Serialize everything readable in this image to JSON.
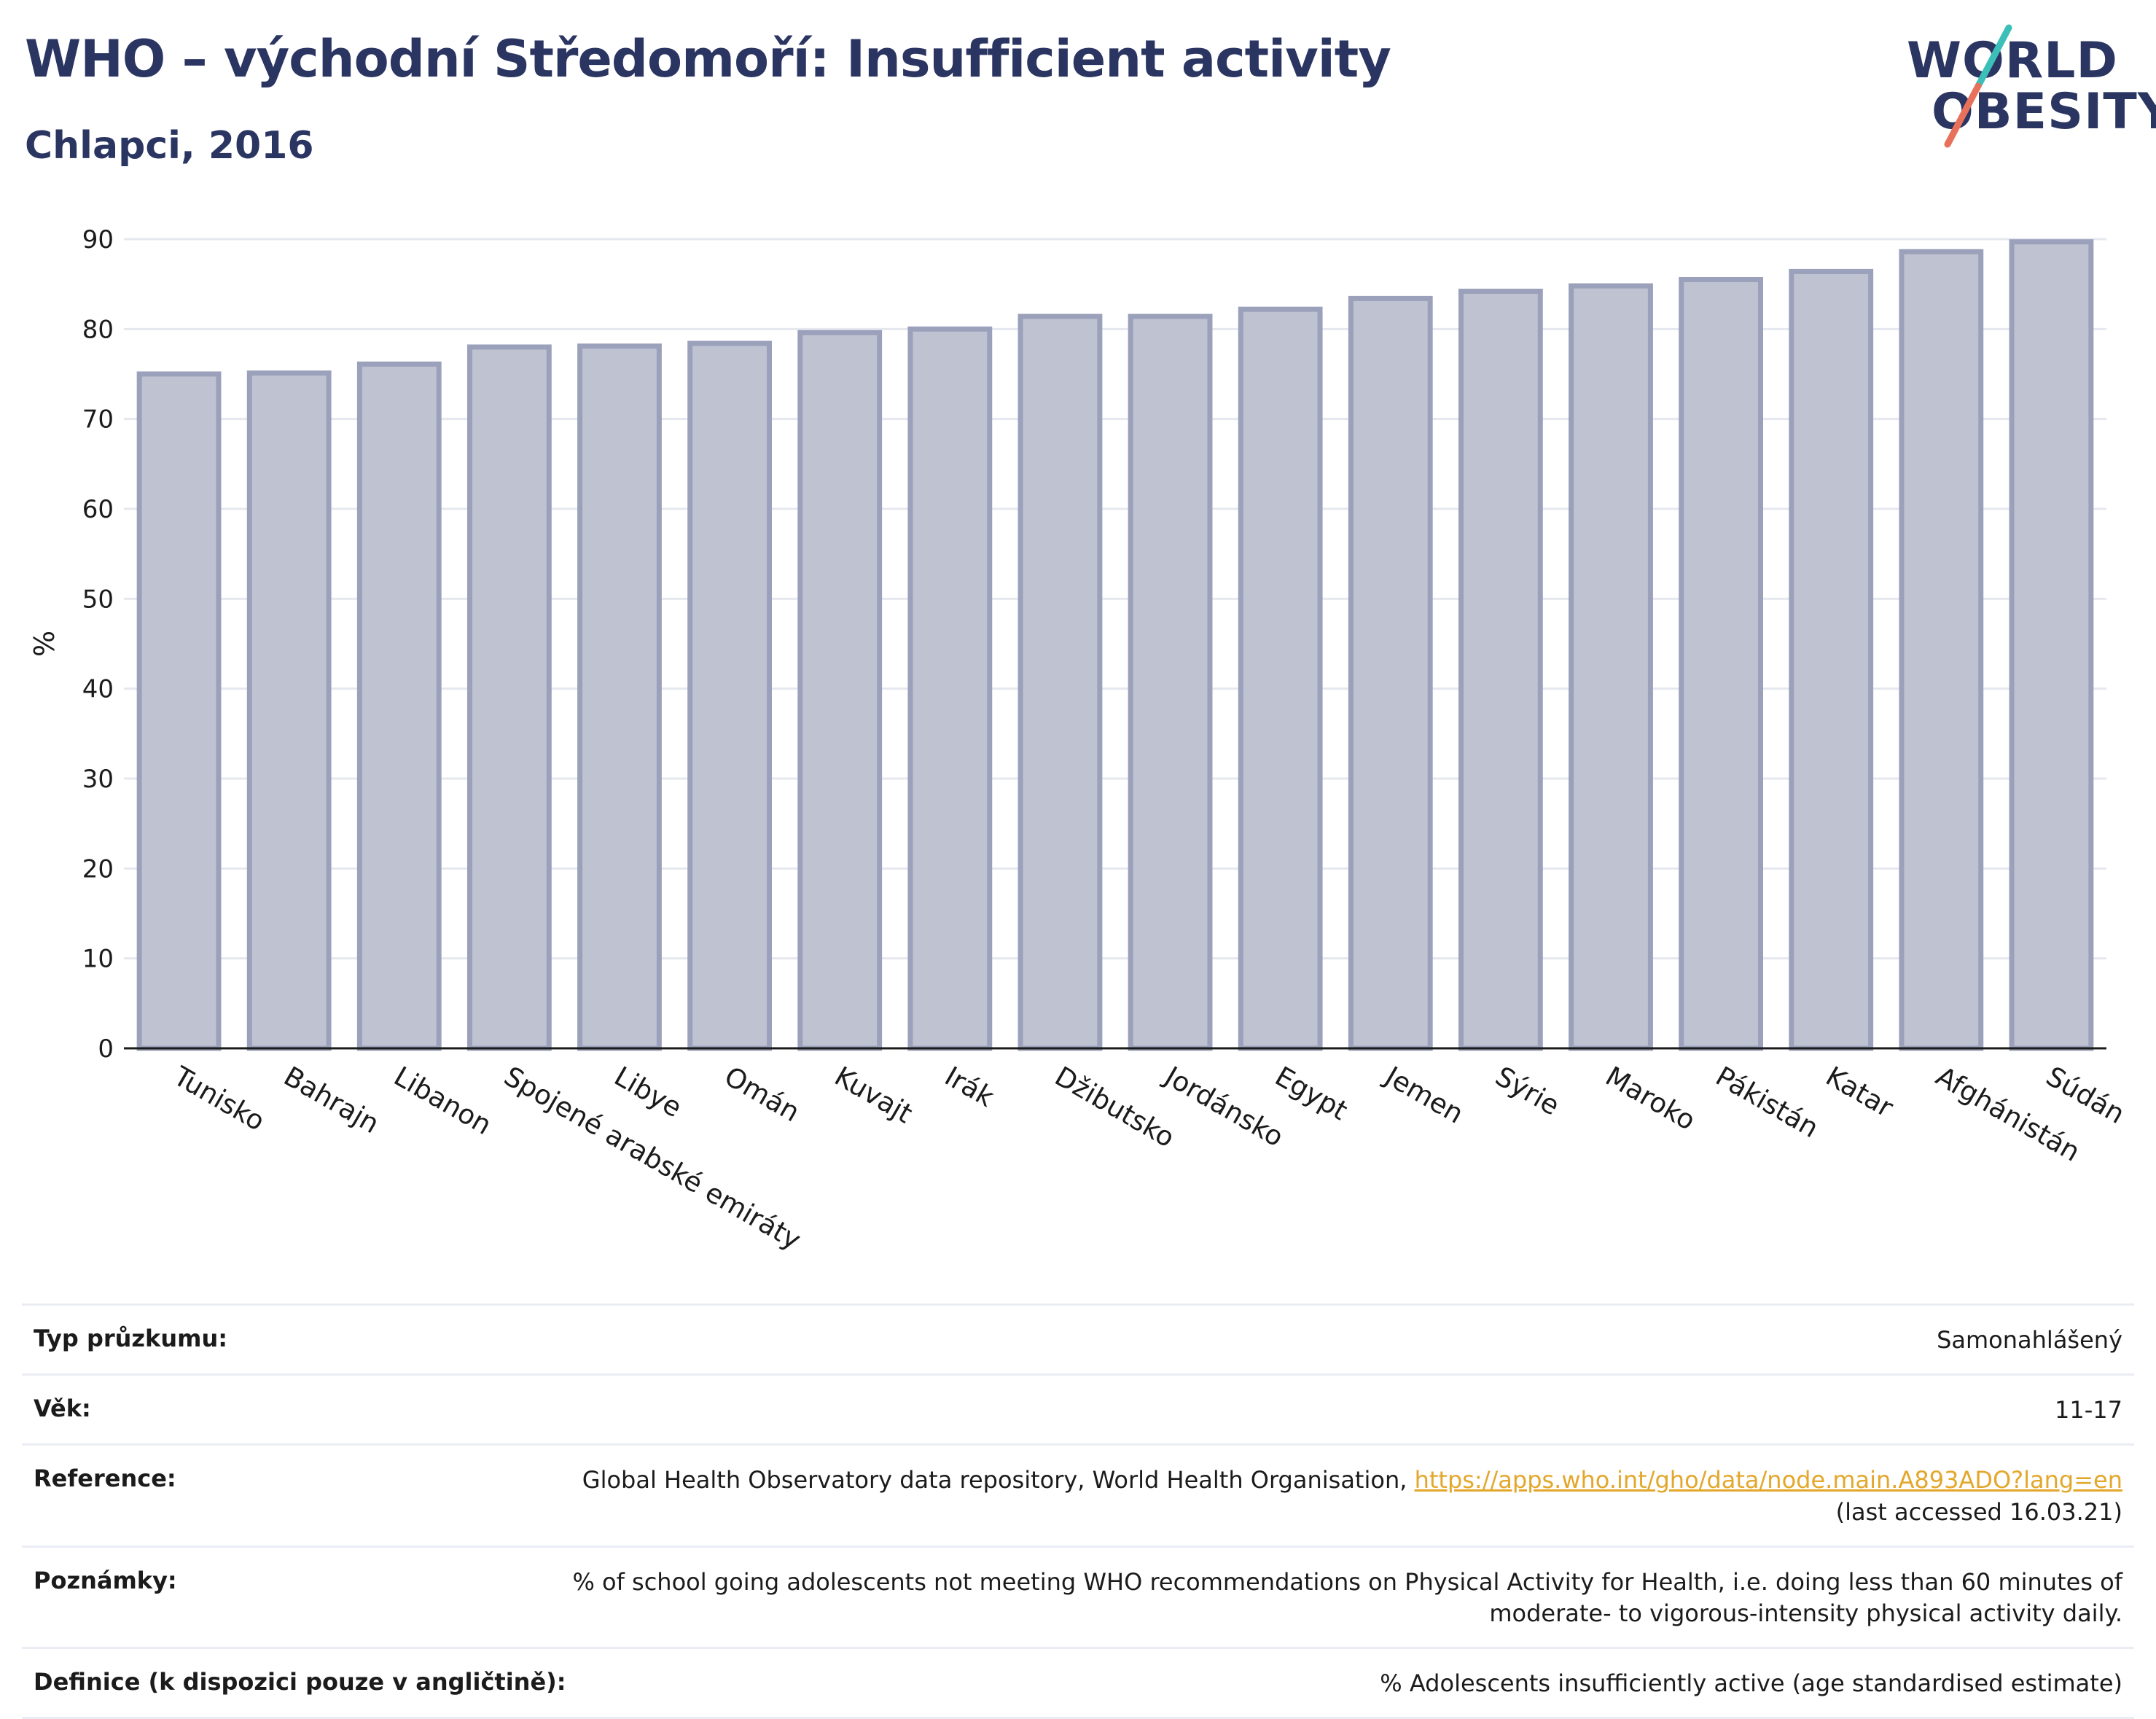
{
  "header": {
    "title": "WHO – východní Středomoří: Insufficient activity",
    "subtitle": "Chlapci, 2016"
  },
  "logo": {
    "line1": "WORLD",
    "line2": "OBESITY",
    "colors": {
      "text": "#2b3562",
      "slash_top": "#3cbfb8",
      "slash_bottom": "#e8715b"
    }
  },
  "chart_data": {
    "type": "bar",
    "title": "WHO – východní Středomoří: Insufficient activity",
    "subtitle": "Chlapci, 2016",
    "xlabel": "",
    "ylabel": "%",
    "ylim": [
      0,
      90
    ],
    "yticks": [
      0,
      10,
      20,
      30,
      40,
      50,
      60,
      70,
      80,
      90
    ],
    "grid": true,
    "categories": [
      "Tunisko",
      "Bahrajn",
      "Libanon",
      "Spojené arabské emiráty",
      "Libye",
      "Omán",
      "Kuvajt",
      "Irák",
      "Džibutsko",
      "Jordánsko",
      "Egypt",
      "Jemen",
      "Sýrie",
      "Maroko",
      "Pákistán",
      "Katar",
      "Afghánistán",
      "Súdán"
    ],
    "values": [
      75.0,
      75.1,
      76.1,
      78.0,
      78.1,
      78.4,
      79.6,
      80.0,
      81.4,
      81.4,
      82.2,
      83.4,
      84.2,
      84.8,
      85.5,
      86.4,
      88.6,
      89.7
    ],
    "colors": {
      "bar_fill": "#bfc2d1",
      "bar_stroke": "#9ba1bb",
      "grid": "#e6e8ef",
      "axis": "#1b1b1b"
    }
  },
  "info": {
    "rows": [
      {
        "label": "Typ průzkumu:",
        "value": "Samonahlášený"
      },
      {
        "label": "Věk:",
        "value": "11-17"
      },
      {
        "label": "Reference:",
        "value": "Global Health Observatory data repository, World Health Organisation, ",
        "link": "https://apps.who.int/gho/data/node.main.A893ADO?lang=en",
        "value2": "(last accessed 16.03.21)"
      },
      {
        "label": "Poznámky:",
        "value": "% of school going adolescents not meeting WHO recommendations on Physical Activity for Health, i.e. doing less than 60 minutes of moderate- to vigorous-intensity physical activity daily."
      },
      {
        "label": "Definice (k dispozici pouze v angličtině):",
        "value": "% Adolescents insufficiently active (age standardised estimate)"
      }
    ]
  }
}
